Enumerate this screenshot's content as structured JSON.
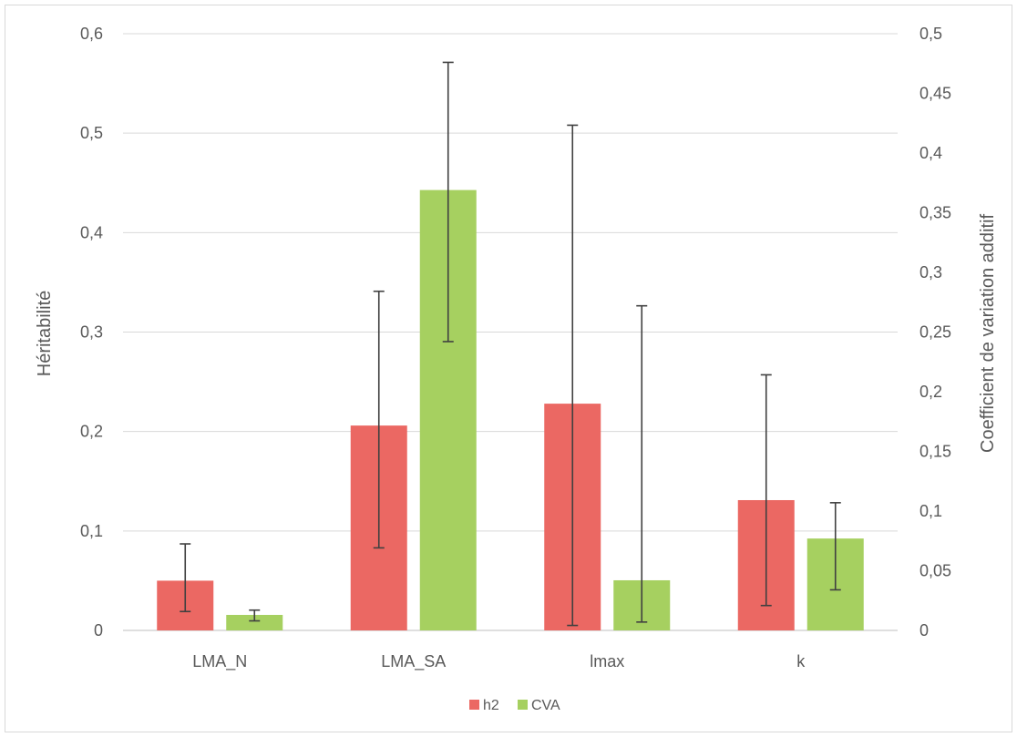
{
  "chart_data": {
    "type": "bar",
    "categories": [
      "LMA_N",
      "LMA_SA",
      "lmax",
      "k"
    ],
    "series": [
      {
        "name": "h2",
        "axis": "left",
        "color": "#eb6863",
        "values": [
          0.05,
          0.206,
          0.228,
          0.131
        ],
        "error_low": [
          0.019,
          0.083,
          0.005,
          0.025
        ],
        "error_high": [
          0.087,
          0.341,
          0.508,
          0.257
        ]
      },
      {
        "name": "CVA",
        "axis": "right",
        "color": "#a6d060",
        "values": [
          0.013,
          0.369,
          0.042,
          0.077
        ],
        "error_low": [
          0.008,
          0.242,
          0.007,
          0.034
        ],
        "error_high": [
          0.017,
          0.476,
          0.272,
          0.107
        ]
      }
    ],
    "ylabel": "Héritabilité",
    "ylabel_right": "Coefficient de variation additif",
    "ylim": [
      0,
      0.6
    ],
    "ylim_right": [
      0,
      0.5
    ],
    "yticks": [
      "0",
      "0,1",
      "0,2",
      "0,3",
      "0,4",
      "0,5",
      "0,6"
    ],
    "yticks_right": [
      "0",
      "0,05",
      "0,1",
      "0,15",
      "0,2",
      "0,25",
      "0,3",
      "0,35",
      "0,4",
      "0,45",
      "0,5"
    ],
    "grid": true,
    "legend": "bottom"
  }
}
